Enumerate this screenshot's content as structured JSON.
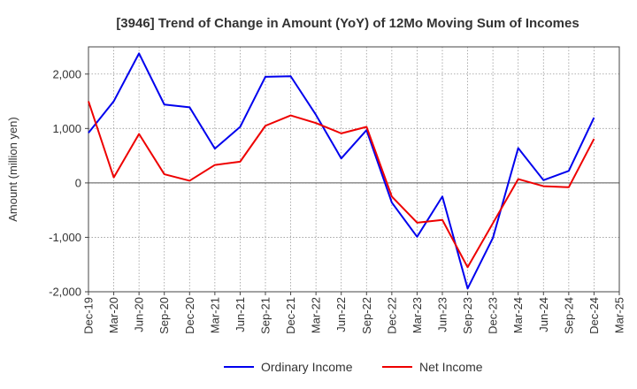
{
  "chart_data": {
    "type": "line",
    "title": "[3946]  Trend of Change in Amount (YoY) of 12Mo Moving Sum of Incomes",
    "ylabel": "Amount (million yen)",
    "xlabel": "",
    "ylim": [
      -2000,
      2500
    ],
    "yticks": [
      -2000,
      -1000,
      0,
      1000,
      2000
    ],
    "ytick_labels": [
      "-2,000",
      "-1,000",
      "0",
      "1,000",
      "2,000"
    ],
    "x": [
      "Dec-19",
      "Mar-20",
      "Jun-20",
      "Sep-20",
      "Dec-20",
      "Mar-21",
      "Jun-21",
      "Sep-21",
      "Dec-21",
      "Mar-22",
      "Jun-22",
      "Sep-22",
      "Dec-22",
      "Mar-23",
      "Jun-23",
      "Sep-23",
      "Dec-23",
      "Mar-24",
      "Jun-24",
      "Sep-24",
      "Dec-24",
      "Mar-25"
    ],
    "grid": true,
    "legend_position": "bottom",
    "series": [
      {
        "name": "Ordinary Income",
        "color": "#0000ee",
        "values": [
          920,
          1500,
          2380,
          1440,
          1390,
          630,
          1030,
          1950,
          1960,
          1250,
          450,
          970,
          -360,
          -990,
          -250,
          -1940,
          -1010,
          640,
          50,
          220,
          1200,
          null
        ]
      },
      {
        "name": "Net Income",
        "color": "#ee0000",
        "values": [
          1500,
          100,
          900,
          160,
          40,
          330,
          390,
          1050,
          1240,
          1100,
          910,
          1030,
          -250,
          -730,
          -680,
          -1550,
          -740,
          70,
          -60,
          -80,
          810,
          null
        ]
      }
    ]
  }
}
